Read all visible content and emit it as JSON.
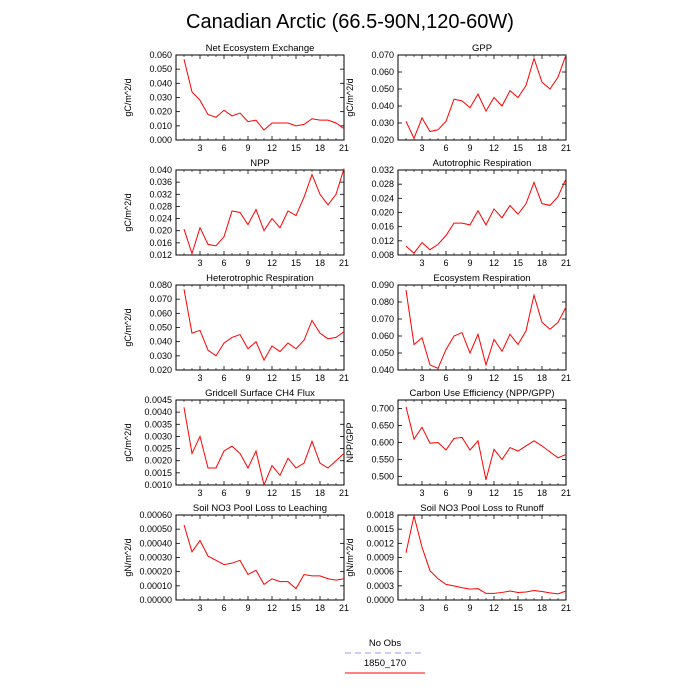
{
  "figure": {
    "title": "Canadian Arctic (66.5-90N,120-60W)"
  },
  "legend": [
    {
      "label": "No Obs",
      "color": "#9999ff",
      "style": "dashed"
    },
    {
      "label": "1850_170",
      "color": "#ff0000",
      "style": "solid"
    }
  ],
  "colors": {
    "series": "#ff0000",
    "obs": "#9999ff"
  },
  "chart_data": [
    {
      "type": "line",
      "title": "Net Ecosystem Exchange",
      "ylabel": "gC/m^2/d",
      "xlim": [
        0,
        21
      ],
      "xticks": [
        3,
        6,
        9,
        12,
        15,
        18,
        21
      ],
      "ylim": [
        0.0,
        0.06
      ],
      "yticks": [
        "0.000",
        "0.010",
        "0.020",
        "0.030",
        "0.040",
        "0.050",
        "0.060"
      ],
      "x": [
        1,
        2,
        3,
        4,
        5,
        6,
        7,
        8,
        9,
        10,
        11,
        12,
        13,
        14,
        15,
        16,
        17,
        18,
        19,
        20,
        21
      ],
      "series": [
        {
          "values": [
            0.057,
            0.034,
            0.028,
            0.018,
            0.016,
            0.021,
            0.017,
            0.019,
            0.013,
            0.014,
            0.007,
            0.012,
            0.012,
            0.012,
            0.01,
            0.011,
            0.015,
            0.014,
            0.014,
            0.012,
            0.008
          ]
        }
      ]
    },
    {
      "type": "line",
      "title": "GPP",
      "ylabel": "gC/m^2/d",
      "xlim": [
        0,
        21
      ],
      "xticks": [
        3,
        6,
        9,
        12,
        15,
        18,
        21
      ],
      "ylim": [
        0.02,
        0.07
      ],
      "yticks": [
        "0.020",
        "0.030",
        "0.040",
        "0.050",
        "0.060",
        "0.070"
      ],
      "x": [
        1,
        2,
        3,
        4,
        5,
        6,
        7,
        8,
        9,
        10,
        11,
        12,
        13,
        14,
        15,
        16,
        17,
        18,
        19,
        20,
        21
      ],
      "series": [
        {
          "values": [
            0.031,
            0.021,
            0.033,
            0.025,
            0.026,
            0.031,
            0.044,
            0.043,
            0.039,
            0.047,
            0.037,
            0.045,
            0.04,
            0.049,
            0.045,
            0.052,
            0.068,
            0.054,
            0.05,
            0.057,
            0.07
          ]
        }
      ]
    },
    {
      "type": "line",
      "title": "NPP",
      "ylabel": "gC/m^2/d",
      "xlim": [
        0,
        21
      ],
      "xticks": [
        3,
        6,
        9,
        12,
        15,
        18,
        21
      ],
      "ylim": [
        0.012,
        0.04
      ],
      "yticks": [
        "0.012",
        "0.016",
        "0.020",
        "0.024",
        "0.028",
        "0.032",
        "0.036",
        "0.040"
      ],
      "x": [
        1,
        2,
        3,
        4,
        5,
        6,
        7,
        8,
        9,
        10,
        11,
        12,
        13,
        14,
        15,
        16,
        17,
        18,
        19,
        20,
        21
      ],
      "series": [
        {
          "values": [
            0.0205,
            0.0125,
            0.021,
            0.0155,
            0.015,
            0.018,
            0.0265,
            0.026,
            0.022,
            0.027,
            0.02,
            0.024,
            0.021,
            0.0265,
            0.025,
            0.031,
            0.0385,
            0.032,
            0.0285,
            0.032,
            0.0405
          ]
        }
      ]
    },
    {
      "type": "line",
      "title": "Autotrophic Respiration",
      "ylabel": "",
      "xlim": [
        0,
        21
      ],
      "xticks": [
        3,
        6,
        9,
        12,
        15,
        18,
        21
      ],
      "ylim": [
        0.008,
        0.032
      ],
      "yticks": [
        "0.008",
        "0.012",
        "0.016",
        "0.020",
        "0.024",
        "0.028",
        "0.032"
      ],
      "x": [
        1,
        2,
        3,
        4,
        5,
        6,
        7,
        8,
        9,
        10,
        11,
        12,
        13,
        14,
        15,
        16,
        17,
        18,
        19,
        20,
        21
      ],
      "series": [
        {
          "values": [
            0.0105,
            0.0085,
            0.0115,
            0.0095,
            0.011,
            0.0135,
            0.017,
            0.017,
            0.0165,
            0.0205,
            0.0165,
            0.021,
            0.0185,
            0.022,
            0.0195,
            0.0225,
            0.0285,
            0.0225,
            0.022,
            0.0245,
            0.0295
          ]
        }
      ]
    },
    {
      "type": "line",
      "title": "Heterotrophic Respiration",
      "ylabel": "gC/m^2/d",
      "xlim": [
        0,
        21
      ],
      "xticks": [
        3,
        6,
        9,
        12,
        15,
        18,
        21
      ],
      "ylim": [
        0.02,
        0.08
      ],
      "yticks": [
        "0.020",
        "0.030",
        "0.040",
        "0.050",
        "0.060",
        "0.070",
        "0.080"
      ],
      "x": [
        1,
        2,
        3,
        4,
        5,
        6,
        7,
        8,
        9,
        10,
        11,
        12,
        13,
        14,
        15,
        16,
        17,
        18,
        19,
        20,
        21
      ],
      "series": [
        {
          "values": [
            0.077,
            0.046,
            0.048,
            0.034,
            0.03,
            0.039,
            0.043,
            0.045,
            0.035,
            0.04,
            0.027,
            0.037,
            0.033,
            0.039,
            0.035,
            0.041,
            0.055,
            0.046,
            0.042,
            0.043,
            0.047
          ]
        }
      ]
    },
    {
      "type": "line",
      "title": "Ecosystem Respiration",
      "ylabel": "",
      "xlim": [
        0,
        21
      ],
      "xticks": [
        3,
        6,
        9,
        12,
        15,
        18,
        21
      ],
      "ylim": [
        0.04,
        0.09
      ],
      "yticks": [
        "0.040",
        "0.050",
        "0.060",
        "0.070",
        "0.080",
        "0.090"
      ],
      "x": [
        1,
        2,
        3,
        4,
        5,
        6,
        7,
        8,
        9,
        10,
        11,
        12,
        13,
        14,
        15,
        16,
        17,
        18,
        19,
        20,
        21
      ],
      "series": [
        {
          "values": [
            0.087,
            0.055,
            0.059,
            0.043,
            0.041,
            0.052,
            0.06,
            0.062,
            0.05,
            0.061,
            0.043,
            0.058,
            0.051,
            0.061,
            0.055,
            0.063,
            0.084,
            0.068,
            0.064,
            0.068,
            0.077
          ]
        }
      ]
    },
    {
      "type": "line",
      "title": "Gridcell Surface CH4 Flux",
      "ylabel": "gC/m^2/d",
      "xlim": [
        0,
        21
      ],
      "xticks": [
        3,
        6,
        9,
        12,
        15,
        18,
        21
      ],
      "ylim": [
        0.001,
        0.0045
      ],
      "yticks": [
        "0.0010",
        "0.0015",
        "0.0020",
        "0.0025",
        "0.0030",
        "0.0035",
        "0.0040",
        "0.0045"
      ],
      "x": [
        1,
        2,
        3,
        4,
        5,
        6,
        7,
        8,
        9,
        10,
        11,
        12,
        13,
        14,
        15,
        16,
        17,
        18,
        19,
        20,
        21
      ],
      "series": [
        {
          "values": [
            0.0042,
            0.0023,
            0.003,
            0.0017,
            0.0017,
            0.0024,
            0.0026,
            0.0023,
            0.0017,
            0.0024,
            0.001,
            0.0018,
            0.0014,
            0.0021,
            0.0017,
            0.0019,
            0.0028,
            0.0019,
            0.0017,
            0.002,
            0.0023
          ]
        }
      ]
    },
    {
      "type": "line",
      "title": "Carbon Use Efficiency (NPP/GPP)",
      "ylabel": "NPP/GPP",
      "xlim": [
        0,
        21
      ],
      "xticks": [
        3,
        6,
        9,
        12,
        15,
        18,
        21
      ],
      "ylim": [
        0.475,
        0.725
      ],
      "yticks": [
        "0.500",
        "0.550",
        "0.600",
        "0.650",
        "0.700"
      ],
      "x": [
        1,
        2,
        3,
        4,
        5,
        6,
        7,
        8,
        9,
        10,
        11,
        12,
        13,
        14,
        15,
        16,
        17,
        18,
        19,
        20,
        21
      ],
      "series": [
        {
          "values": [
            0.705,
            0.61,
            0.645,
            0.598,
            0.6,
            0.578,
            0.612,
            0.615,
            0.578,
            0.605,
            0.49,
            0.58,
            0.55,
            0.585,
            0.575,
            0.59,
            0.605,
            0.59,
            0.572,
            0.555,
            0.565
          ]
        }
      ]
    },
    {
      "type": "line",
      "title": "Soil NO3 Pool Loss to Leaching",
      "ylabel": "gN/m^2/d",
      "xlim": [
        0,
        21
      ],
      "xticks": [
        3,
        6,
        9,
        12,
        15,
        18,
        21
      ],
      "ylim": [
        0.0,
        0.0006
      ],
      "yticks": [
        "0.00000",
        "0.00010",
        "0.00020",
        "0.00030",
        "0.00040",
        "0.00050",
        "0.00060"
      ],
      "x": [
        1,
        2,
        3,
        4,
        5,
        6,
        7,
        8,
        9,
        10,
        11,
        12,
        13,
        14,
        15,
        16,
        17,
        18,
        19,
        20,
        21
      ],
      "series": [
        {
          "values": [
            0.00053,
            0.00034,
            0.00042,
            0.00031,
            0.00028,
            0.00025,
            0.00026,
            0.00028,
            0.00018,
            0.00021,
            0.00011,
            0.00015,
            0.00013,
            0.00013,
            8e-05,
            0.00018,
            0.00017,
            0.00017,
            0.00015,
            0.00014,
            0.00015
          ]
        }
      ]
    },
    {
      "type": "line",
      "title": "Soil NO3 Pool Loss to Runoff",
      "ylabel": "gN/m^2/d",
      "xlim": [
        0,
        21
      ],
      "xticks": [
        3,
        6,
        9,
        12,
        15,
        18,
        21
      ],
      "ylim": [
        0.0,
        0.0018
      ],
      "yticks": [
        "0.0000",
        "0.0003",
        "0.0006",
        "0.0009",
        "0.0012",
        "0.0015",
        "0.0018"
      ],
      "x": [
        1,
        2,
        3,
        4,
        5,
        6,
        7,
        8,
        9,
        10,
        11,
        12,
        13,
        14,
        15,
        16,
        17,
        18,
        19,
        20,
        21
      ],
      "series": [
        {
          "values": [
            0.001,
            0.00178,
            0.00112,
            0.00062,
            0.00045,
            0.00033,
            0.0003,
            0.00026,
            0.00023,
            0.00024,
            0.00014,
            0.00014,
            0.00016,
            0.00019,
            0.00016,
            0.00017,
            0.0002,
            0.00018,
            0.00015,
            0.00013,
            0.00019
          ]
        }
      ]
    }
  ]
}
